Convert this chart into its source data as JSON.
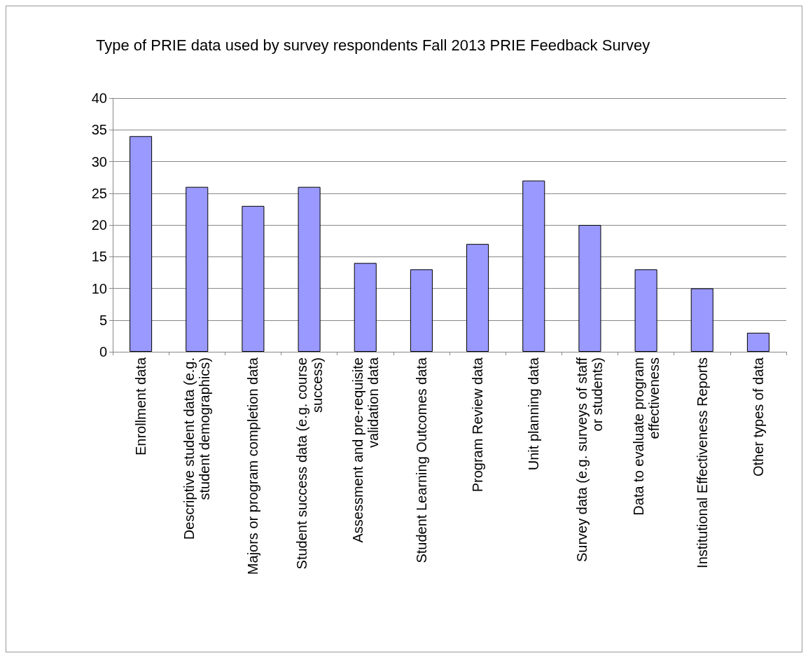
{
  "chart_data": {
    "type": "bar",
    "title": "Type of PRIE data used by survey respondents Fall 2013 PRIE Feedback Survey",
    "categories": [
      "Enrollment data",
      "Descriptive student data (e.g.\nstudent demographics)",
      "Majors or program completion data",
      "Student success data (e.g. course\nsuccess)",
      "Assessment and pre-requisite\nvalidation data",
      "Student Learning Outcomes data",
      "Program Review data",
      "Unit planning data",
      "Survey data (e.g. surveys of staff\nor students)",
      "Data to evaluate program\neffectiveness",
      "Institutional Effectiveness Reports",
      "Other types of data"
    ],
    "values": [
      34,
      26,
      23,
      26,
      14,
      13,
      17,
      27,
      20,
      13,
      10,
      3
    ],
    "color": "#9999ff",
    "ylim": [
      0,
      40
    ],
    "yticks": [
      0,
      5,
      10,
      15,
      20,
      25,
      30,
      35,
      40
    ],
    "grid": "y"
  }
}
